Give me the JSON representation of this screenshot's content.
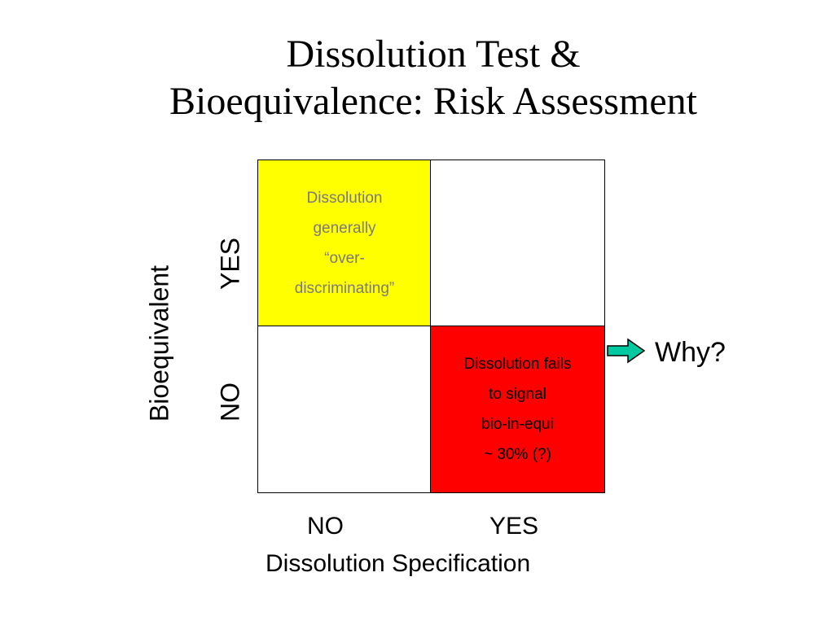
{
  "title": {
    "line1": "Dissolution Test &",
    "line2": "Bioequivalence: Risk Assessment"
  },
  "y_axis": {
    "label": "Bioequivalent",
    "yes": "YES",
    "no": "NO"
  },
  "x_axis": {
    "no": "NO",
    "yes": "YES",
    "label": "Dissolution Specification"
  },
  "cells": {
    "top_left": {
      "lines": [
        "Dissolution",
        "generally",
        "“over-",
        "discriminating”"
      ],
      "background": "#ffff00",
      "text_color": "#7a7a7a"
    },
    "top_right": {
      "lines": [],
      "background": "#ffffff"
    },
    "bottom_left": {
      "lines": [],
      "background": "#ffffff"
    },
    "bottom_right": {
      "lines": [
        "Dissolution fails",
        "to signal",
        "bio-in-equi",
        "~ 30% (?)"
      ],
      "background": "#ff0000",
      "text_color": "#000000"
    }
  },
  "callout": {
    "text": "Why?",
    "arrow_color": "#00c8a0",
    "arrow_icon": "arrow-right-icon"
  }
}
